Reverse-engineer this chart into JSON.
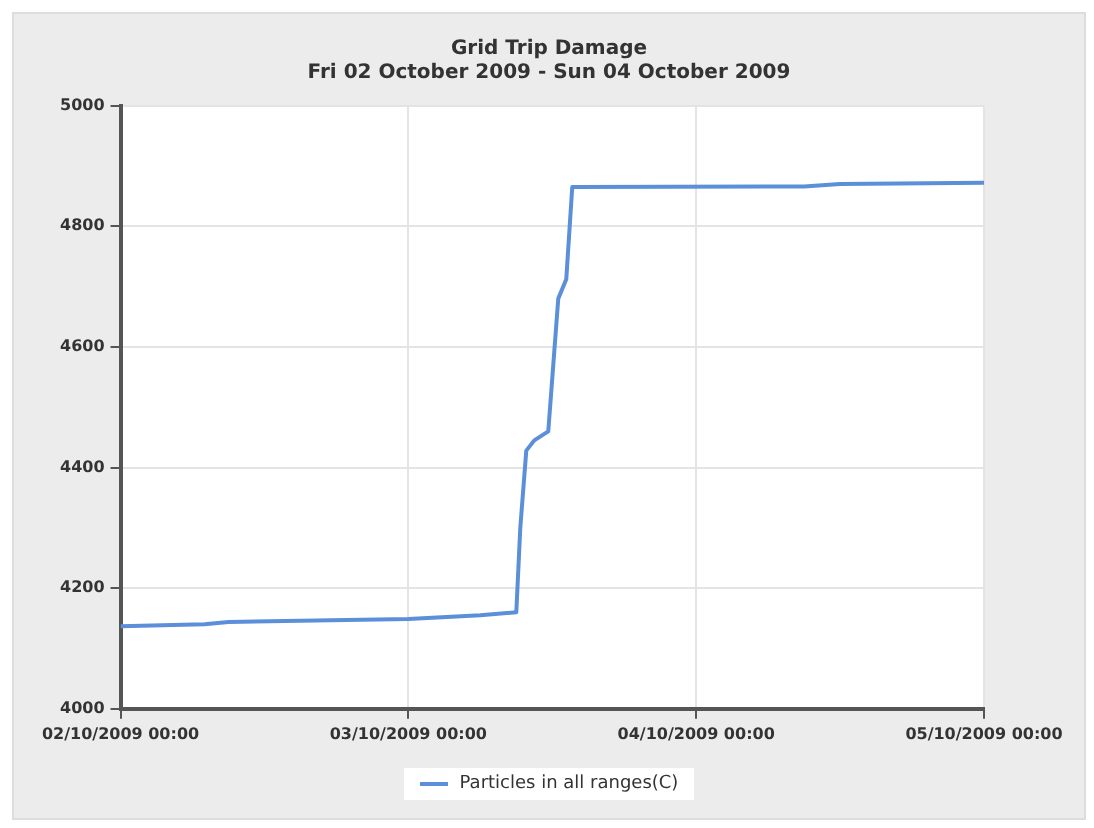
{
  "chart_data": {
    "type": "line",
    "title": "Grid Trip Damage",
    "subtitle": "Fri 02 October 2009 - Sun 04 October 2009",
    "x": [
      "2009-10-02T00:00",
      "2009-10-02T07:00",
      "2009-10-02T09:00",
      "2009-10-03T00:00",
      "2009-10-03T06:00",
      "2009-10-03T09:00",
      "2009-10-03T09:20",
      "2009-10-03T09:50",
      "2009-10-03T10:30",
      "2009-10-03T11:40",
      "2009-10-03T12:30",
      "2009-10-03T13:10",
      "2009-10-03T13:40",
      "2009-10-04T09:00",
      "2009-10-04T12:00",
      "2009-10-05T00:00"
    ],
    "series": [
      {
        "name": "Particles in all ranges(C)",
        "color": "#5b8fd9",
        "values": [
          4137,
          4140,
          4144,
          4149,
          4155,
          4160,
          4300,
          4428,
          4445,
          4460,
          4680,
          4712,
          4865,
          4866,
          4870,
          4872
        ]
      }
    ],
    "xlim": [
      "2009-10-02T00:00",
      "2009-10-05T00:00"
    ],
    "xticks": [
      {
        "value": "2009-10-02T00:00",
        "label": "02/10/2009 00:00"
      },
      {
        "value": "2009-10-03T00:00",
        "label": "03/10/2009 00:00"
      },
      {
        "value": "2009-10-04T00:00",
        "label": "04/10/2009 00:00"
      },
      {
        "value": "2009-10-05T00:00",
        "label": "05/10/2009 00:00"
      }
    ],
    "ylim": [
      4000,
      5000
    ],
    "yticks": [
      4000,
      4200,
      4400,
      4600,
      4800,
      5000
    ],
    "grid": true,
    "legend": "bottom",
    "marker": "none",
    "line_style": "solid"
  }
}
